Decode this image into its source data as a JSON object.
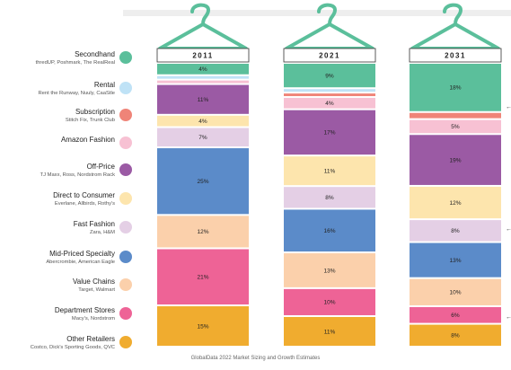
{
  "chart_data": {
    "type": "stacked-bar",
    "years": [
      "2011",
      "2021",
      "2031"
    ],
    "categories": [
      {
        "name": "Secondhand",
        "sub": "thredUP, Poshmark, The RealReal",
        "color": "#5bbf9b"
      },
      {
        "name": "Rental",
        "sub": "Rent the Runway, Nuuly, CaaStle",
        "color": "#bfe2f6"
      },
      {
        "name": "Subscription",
        "sub": "Stitch Fix, Trunk Club",
        "color": "#ef8478"
      },
      {
        "name": "Amazon Fashion",
        "sub": "",
        "color": "#f7c1d3"
      },
      {
        "name": "Off-Price",
        "sub": "TJ Maxx, Ross, Nordstrom Rack",
        "color": "#9b5aa4"
      },
      {
        "name": "Direct to Consumer",
        "sub": "Everlane, Allbirds, Rothy's",
        "color": "#fde5ad"
      },
      {
        "name": "Fast Fashion",
        "sub": "Zara, H&M",
        "color": "#e4cfe5"
      },
      {
        "name": "Mid-Priced Specialty",
        "sub": "Abercrombie, American Eagle",
        "color": "#5b8bc9"
      },
      {
        "name": "Value Chains",
        "sub": "Target, Walmart",
        "color": "#fbd0ab"
      },
      {
        "name": "Department Stores",
        "sub": "Macy's, Nordstrom",
        "color": "#ee6396"
      },
      {
        "name": "Other Retailers",
        "sub": "Costco, Dick's Sporting Goods, QVC",
        "color": "#f0ac2f"
      }
    ],
    "series": [
      {
        "name": "2011",
        "values": [
          4,
          1,
          0,
          1,
          11,
          4,
          7,
          25,
          12,
          21,
          15
        ]
      },
      {
        "name": "2021",
        "values": [
          9,
          1,
          1,
          4,
          17,
          11,
          8,
          16,
          13,
          10,
          11
        ]
      },
      {
        "name": "2031",
        "values": [
          18,
          0,
          2,
          5,
          19,
          12,
          8,
          13,
          10,
          6,
          8
        ]
      }
    ],
    "labels": [
      [
        "4%",
        "",
        "",
        "",
        "11%",
        "4%",
        "7%",
        "25%",
        "12%",
        "21%",
        "15%"
      ],
      [
        "9%",
        "",
        "",
        "4%",
        "17%",
        "11%",
        "8%",
        "16%",
        "13%",
        "10%",
        "11%"
      ],
      [
        "18%",
        "",
        "",
        "5%",
        "19%",
        "12%",
        "8%",
        "13%",
        "10%",
        "6%",
        "8%"
      ]
    ],
    "arrows": [
      "Subscription",
      "Fast Fashion",
      "Department Stores"
    ],
    "arrow_glyph": "←"
  },
  "source": "GlobalData 2022 Market Sizing and Growth Estimates"
}
